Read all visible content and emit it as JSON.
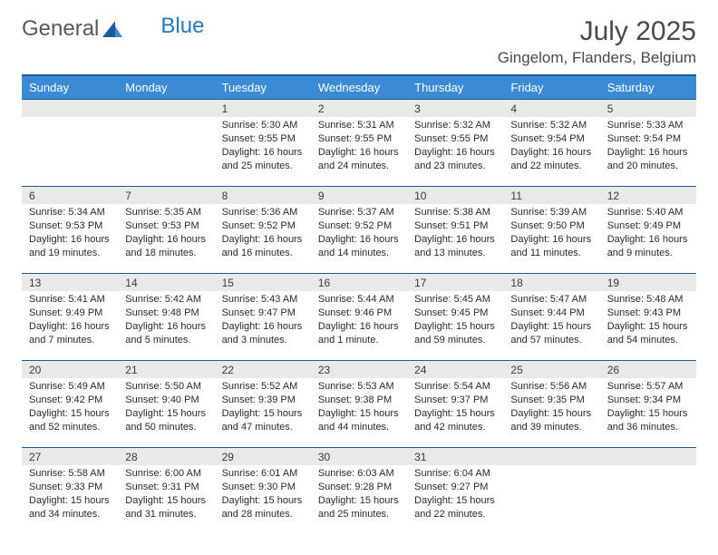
{
  "brand": {
    "part1": "General",
    "part2": "Blue"
  },
  "title": "July 2025",
  "location": "Gingelom, Flanders, Belgium",
  "colors": {
    "header_bg": "#3b8bd4",
    "header_border": "#1d5a99",
    "daynum_bg": "#e9e9e9",
    "logo_gray": "#5a5a5a",
    "logo_blue": "#2a78c4"
  },
  "weekday_labels": [
    "Sunday",
    "Monday",
    "Tuesday",
    "Wednesday",
    "Thursday",
    "Friday",
    "Saturday"
  ],
  "weeks": [
    [
      null,
      null,
      {
        "n": "1",
        "sunrise": "Sunrise: 5:30 AM",
        "sunset": "Sunset: 9:55 PM",
        "day": "Daylight: 16 hours and 25 minutes."
      },
      {
        "n": "2",
        "sunrise": "Sunrise: 5:31 AM",
        "sunset": "Sunset: 9:55 PM",
        "day": "Daylight: 16 hours and 24 minutes."
      },
      {
        "n": "3",
        "sunrise": "Sunrise: 5:32 AM",
        "sunset": "Sunset: 9:55 PM",
        "day": "Daylight: 16 hours and 23 minutes."
      },
      {
        "n": "4",
        "sunrise": "Sunrise: 5:32 AM",
        "sunset": "Sunset: 9:54 PM",
        "day": "Daylight: 16 hours and 22 minutes."
      },
      {
        "n": "5",
        "sunrise": "Sunrise: 5:33 AM",
        "sunset": "Sunset: 9:54 PM",
        "day": "Daylight: 16 hours and 20 minutes."
      }
    ],
    [
      {
        "n": "6",
        "sunrise": "Sunrise: 5:34 AM",
        "sunset": "Sunset: 9:53 PM",
        "day": "Daylight: 16 hours and 19 minutes."
      },
      {
        "n": "7",
        "sunrise": "Sunrise: 5:35 AM",
        "sunset": "Sunset: 9:53 PM",
        "day": "Daylight: 16 hours and 18 minutes."
      },
      {
        "n": "8",
        "sunrise": "Sunrise: 5:36 AM",
        "sunset": "Sunset: 9:52 PM",
        "day": "Daylight: 16 hours and 16 minutes."
      },
      {
        "n": "9",
        "sunrise": "Sunrise: 5:37 AM",
        "sunset": "Sunset: 9:52 PM",
        "day": "Daylight: 16 hours and 14 minutes."
      },
      {
        "n": "10",
        "sunrise": "Sunrise: 5:38 AM",
        "sunset": "Sunset: 9:51 PM",
        "day": "Daylight: 16 hours and 13 minutes."
      },
      {
        "n": "11",
        "sunrise": "Sunrise: 5:39 AM",
        "sunset": "Sunset: 9:50 PM",
        "day": "Daylight: 16 hours and 11 minutes."
      },
      {
        "n": "12",
        "sunrise": "Sunrise: 5:40 AM",
        "sunset": "Sunset: 9:49 PM",
        "day": "Daylight: 16 hours and 9 minutes."
      }
    ],
    [
      {
        "n": "13",
        "sunrise": "Sunrise: 5:41 AM",
        "sunset": "Sunset: 9:49 PM",
        "day": "Daylight: 16 hours and 7 minutes."
      },
      {
        "n": "14",
        "sunrise": "Sunrise: 5:42 AM",
        "sunset": "Sunset: 9:48 PM",
        "day": "Daylight: 16 hours and 5 minutes."
      },
      {
        "n": "15",
        "sunrise": "Sunrise: 5:43 AM",
        "sunset": "Sunset: 9:47 PM",
        "day": "Daylight: 16 hours and 3 minutes."
      },
      {
        "n": "16",
        "sunrise": "Sunrise: 5:44 AM",
        "sunset": "Sunset: 9:46 PM",
        "day": "Daylight: 16 hours and 1 minute."
      },
      {
        "n": "17",
        "sunrise": "Sunrise: 5:45 AM",
        "sunset": "Sunset: 9:45 PM",
        "day": "Daylight: 15 hours and 59 minutes."
      },
      {
        "n": "18",
        "sunrise": "Sunrise: 5:47 AM",
        "sunset": "Sunset: 9:44 PM",
        "day": "Daylight: 15 hours and 57 minutes."
      },
      {
        "n": "19",
        "sunrise": "Sunrise: 5:48 AM",
        "sunset": "Sunset: 9:43 PM",
        "day": "Daylight: 15 hours and 54 minutes."
      }
    ],
    [
      {
        "n": "20",
        "sunrise": "Sunrise: 5:49 AM",
        "sunset": "Sunset: 9:42 PM",
        "day": "Daylight: 15 hours and 52 minutes."
      },
      {
        "n": "21",
        "sunrise": "Sunrise: 5:50 AM",
        "sunset": "Sunset: 9:40 PM",
        "day": "Daylight: 15 hours and 50 minutes."
      },
      {
        "n": "22",
        "sunrise": "Sunrise: 5:52 AM",
        "sunset": "Sunset: 9:39 PM",
        "day": "Daylight: 15 hours and 47 minutes."
      },
      {
        "n": "23",
        "sunrise": "Sunrise: 5:53 AM",
        "sunset": "Sunset: 9:38 PM",
        "day": "Daylight: 15 hours and 44 minutes."
      },
      {
        "n": "24",
        "sunrise": "Sunrise: 5:54 AM",
        "sunset": "Sunset: 9:37 PM",
        "day": "Daylight: 15 hours and 42 minutes."
      },
      {
        "n": "25",
        "sunrise": "Sunrise: 5:56 AM",
        "sunset": "Sunset: 9:35 PM",
        "day": "Daylight: 15 hours and 39 minutes."
      },
      {
        "n": "26",
        "sunrise": "Sunrise: 5:57 AM",
        "sunset": "Sunset: 9:34 PM",
        "day": "Daylight: 15 hours and 36 minutes."
      }
    ],
    [
      {
        "n": "27",
        "sunrise": "Sunrise: 5:58 AM",
        "sunset": "Sunset: 9:33 PM",
        "day": "Daylight: 15 hours and 34 minutes."
      },
      {
        "n": "28",
        "sunrise": "Sunrise: 6:00 AM",
        "sunset": "Sunset: 9:31 PM",
        "day": "Daylight: 15 hours and 31 minutes."
      },
      {
        "n": "29",
        "sunrise": "Sunrise: 6:01 AM",
        "sunset": "Sunset: 9:30 PM",
        "day": "Daylight: 15 hours and 28 minutes."
      },
      {
        "n": "30",
        "sunrise": "Sunrise: 6:03 AM",
        "sunset": "Sunset: 9:28 PM",
        "day": "Daylight: 15 hours and 25 minutes."
      },
      {
        "n": "31",
        "sunrise": "Sunrise: 6:04 AM",
        "sunset": "Sunset: 9:27 PM",
        "day": "Daylight: 15 hours and 22 minutes."
      },
      null,
      null
    ]
  ]
}
